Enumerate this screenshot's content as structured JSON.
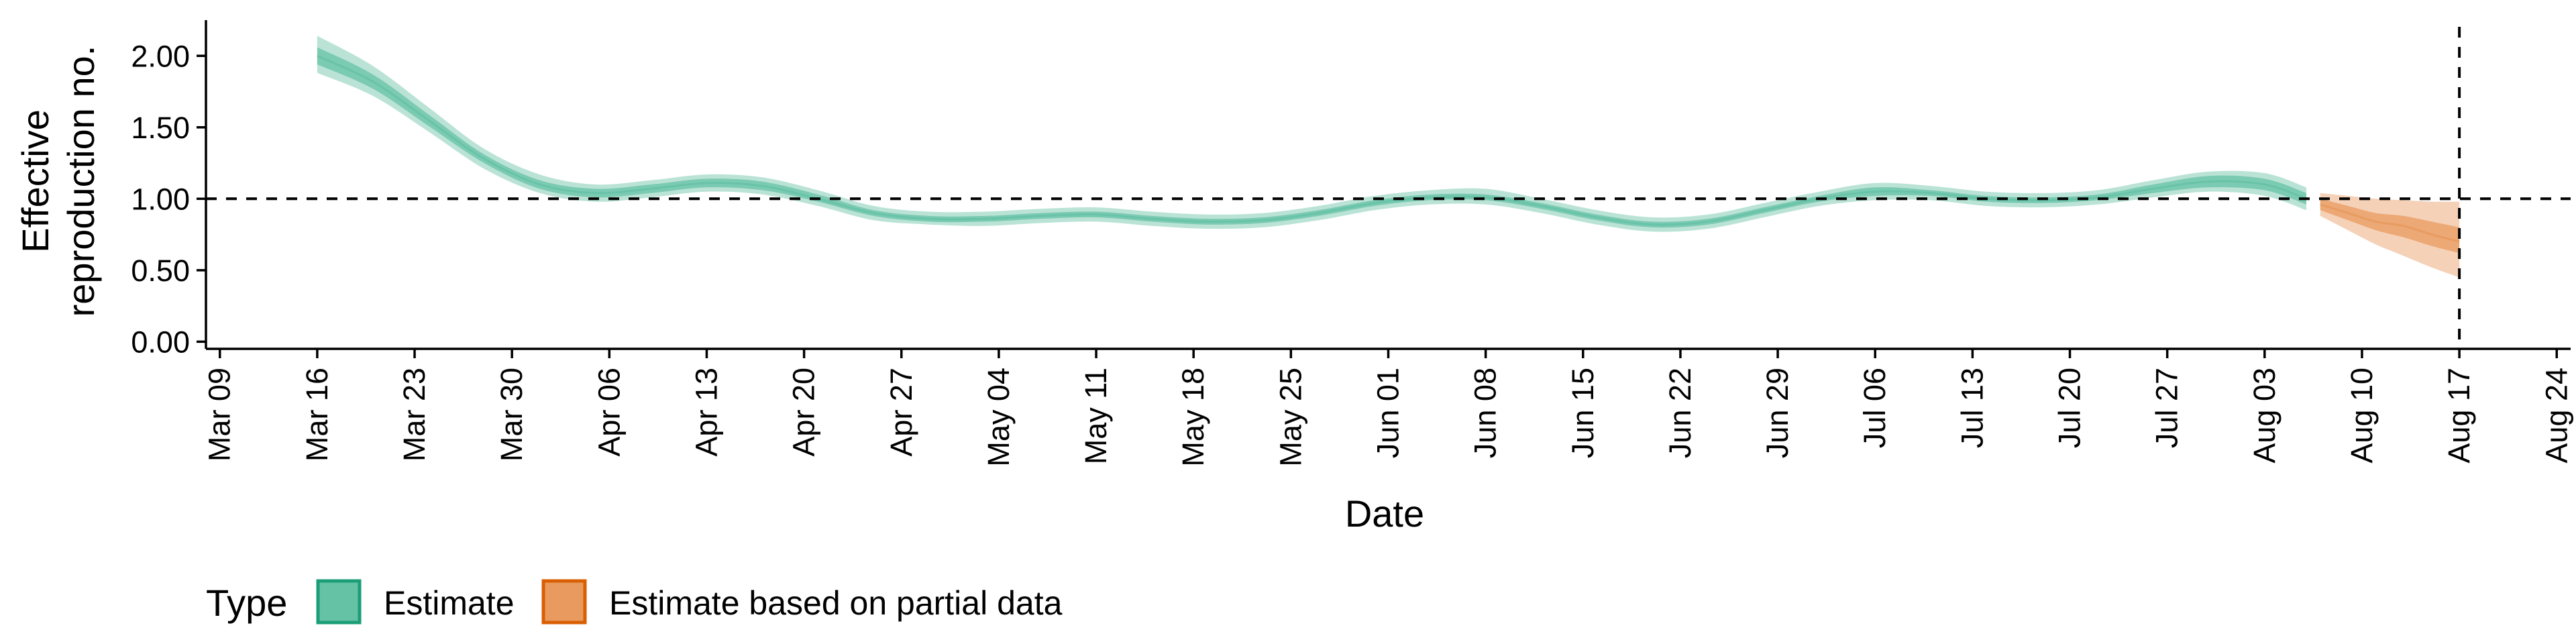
{
  "chart_data": {
    "type": "area",
    "xlabel": "Date",
    "ylabel": [
      "Effective",
      "reproduction no."
    ],
    "xlim": [
      "2020-03-08",
      "2020-08-25"
    ],
    "ylim": [
      -0.05,
      2.25
    ],
    "x_ticks": [
      "2020-03-09",
      "2020-03-16",
      "2020-03-23",
      "2020-03-30",
      "2020-04-06",
      "2020-04-13",
      "2020-04-20",
      "2020-04-27",
      "2020-05-04",
      "2020-05-11",
      "2020-05-18",
      "2020-05-25",
      "2020-06-01",
      "2020-06-08",
      "2020-06-15",
      "2020-06-22",
      "2020-06-29",
      "2020-07-06",
      "2020-07-13",
      "2020-07-20",
      "2020-07-27",
      "2020-08-03",
      "2020-08-10",
      "2020-08-17",
      "2020-08-24"
    ],
    "x_tick_labels": [
      "Mar 09",
      "Mar 16",
      "Mar 23",
      "Mar 30",
      "Apr 06",
      "Apr 13",
      "Apr 20",
      "Apr 27",
      "May 04",
      "May 11",
      "May 18",
      "May 25",
      "Jun 01",
      "Jun 08",
      "Jun 15",
      "Jun 22",
      "Jun 29",
      "Jul 06",
      "Jul 13",
      "Jul 20",
      "Jul 27",
      "Aug 03",
      "Aug 10",
      "Aug 17",
      "Aug 24"
    ],
    "y_ticks": [
      0,
      0.5,
      1.0,
      1.5,
      2.0
    ],
    "y_tick_labels": [
      "0.00",
      "0.50",
      "1.00",
      "1.50",
      "2.00"
    ],
    "reference_lines": {
      "horizontal_y": 1.0,
      "vertical_x": "2020-08-17"
    },
    "grid": false,
    "legend": {
      "title": "Type",
      "position": "bottom-left",
      "entries": [
        {
          "label": "Estimate",
          "color": "#66c2a5",
          "border": "#1b9e77"
        },
        {
          "label": "Estimate based on partial data",
          "color": "#e89a5f",
          "border": "#d95f02"
        }
      ]
    },
    "series": [
      {
        "name": "Estimate",
        "color": "#66c2a5",
        "x": [
          "2020-03-16",
          "2020-03-20",
          "2020-03-24",
          "2020-03-28",
          "2020-04-01",
          "2020-04-05",
          "2020-04-09",
          "2020-04-13",
          "2020-04-17",
          "2020-04-21",
          "2020-04-25",
          "2020-04-29",
          "2020-05-03",
          "2020-05-07",
          "2020-05-11",
          "2020-05-15",
          "2020-05-19",
          "2020-05-23",
          "2020-05-27",
          "2020-05-31",
          "2020-06-04",
          "2020-06-08",
          "2020-06-12",
          "2020-06-16",
          "2020-06-20",
          "2020-06-24",
          "2020-06-28",
          "2020-07-02",
          "2020-07-06",
          "2020-07-10",
          "2020-07-14",
          "2020-07-18",
          "2020-07-22",
          "2020-07-26",
          "2020-07-30",
          "2020-08-03",
          "2020-08-06"
        ],
        "median": [
          2.0,
          1.82,
          1.55,
          1.28,
          1.1,
          1.04,
          1.07,
          1.11,
          1.09,
          1.0,
          0.9,
          0.86,
          0.86,
          0.88,
          0.89,
          0.86,
          0.84,
          0.85,
          0.9,
          0.97,
          1.01,
          1.01,
          0.95,
          0.87,
          0.82,
          0.84,
          0.92,
          1.0,
          1.05,
          1.04,
          1.0,
          0.99,
          1.01,
          1.07,
          1.12,
          1.1,
          1.0
        ],
        "lower_50": [
          1.94,
          1.77,
          1.51,
          1.25,
          1.07,
          1.01,
          1.04,
          1.08,
          1.06,
          0.98,
          0.88,
          0.84,
          0.84,
          0.86,
          0.87,
          0.84,
          0.82,
          0.83,
          0.88,
          0.95,
          0.99,
          0.99,
          0.93,
          0.85,
          0.8,
          0.82,
          0.9,
          0.98,
          1.02,
          1.02,
          0.98,
          0.97,
          0.99,
          1.04,
          1.08,
          1.06,
          0.96
        ],
        "upper_50": [
          2.06,
          1.87,
          1.59,
          1.31,
          1.13,
          1.07,
          1.1,
          1.14,
          1.12,
          1.03,
          0.92,
          0.88,
          0.88,
          0.9,
          0.91,
          0.88,
          0.86,
          0.87,
          0.92,
          0.99,
          1.03,
          1.03,
          0.97,
          0.89,
          0.84,
          0.86,
          0.94,
          1.02,
          1.08,
          1.06,
          1.02,
          1.01,
          1.03,
          1.1,
          1.16,
          1.14,
          1.04
        ],
        "lower_90": [
          1.88,
          1.72,
          1.47,
          1.21,
          1.04,
          0.98,
          1.01,
          1.05,
          1.03,
          0.95,
          0.85,
          0.82,
          0.81,
          0.83,
          0.84,
          0.81,
          0.79,
          0.8,
          0.85,
          0.92,
          0.96,
          0.96,
          0.9,
          0.82,
          0.77,
          0.79,
          0.87,
          0.95,
          0.99,
          0.99,
          0.95,
          0.94,
          0.96,
          1.01,
          1.05,
          1.02,
          0.92
        ],
        "upper_90": [
          2.14,
          1.93,
          1.64,
          1.35,
          1.17,
          1.1,
          1.13,
          1.17,
          1.15,
          1.06,
          0.95,
          0.91,
          0.91,
          0.93,
          0.94,
          0.91,
          0.89,
          0.9,
          0.95,
          1.02,
          1.06,
          1.07,
          1.0,
          0.92,
          0.87,
          0.89,
          0.97,
          1.05,
          1.11,
          1.09,
          1.05,
          1.04,
          1.06,
          1.13,
          1.19,
          1.18,
          1.08
        ]
      },
      {
        "name": "Estimate based on partial data",
        "color": "#e89a5f",
        "x": [
          "2020-08-07",
          "2020-08-09",
          "2020-08-11",
          "2020-08-13",
          "2020-08-15",
          "2020-08-17"
        ],
        "median": [
          0.96,
          0.9,
          0.84,
          0.81,
          0.75,
          0.7
        ],
        "lower_50": [
          0.92,
          0.85,
          0.78,
          0.73,
          0.67,
          0.62
        ],
        "upper_50": [
          1.0,
          0.95,
          0.9,
          0.88,
          0.84,
          0.8
        ],
        "lower_90": [
          0.88,
          0.78,
          0.68,
          0.6,
          0.52,
          0.45
        ],
        "upper_90": [
          1.04,
          1.02,
          1.0,
          0.99,
          0.98,
          0.98
        ]
      }
    ]
  }
}
